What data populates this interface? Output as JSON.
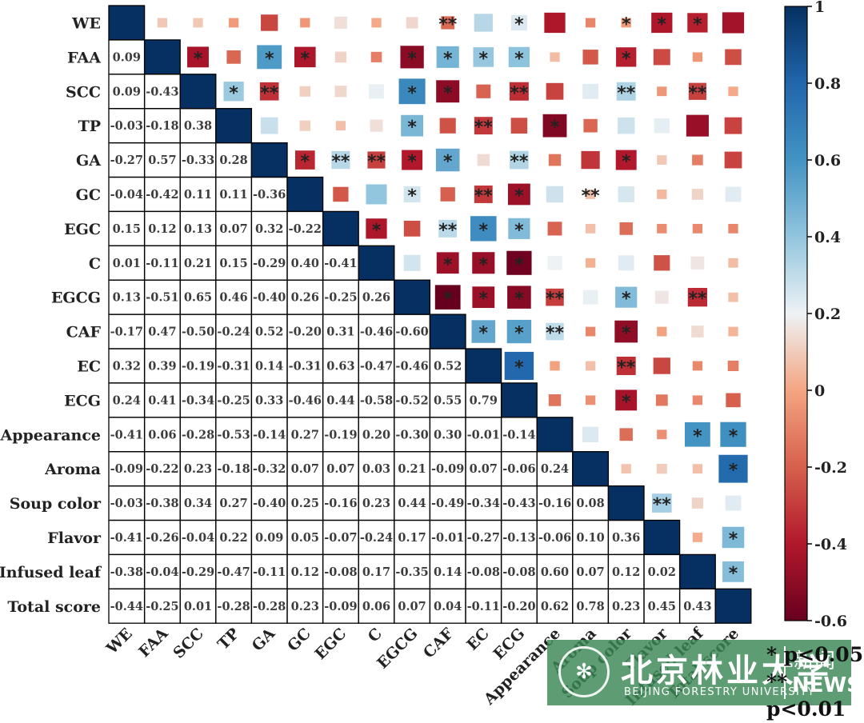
{
  "chart_data": {
    "type": "heatmap",
    "subtype": "correlation-matrix",
    "variables": [
      "WE",
      "FAA",
      "SCC",
      "TP",
      "GA",
      "GC",
      "EGC",
      "C",
      "EGCG",
      "CAF",
      "EC",
      "ECG",
      "Appearance",
      "Aroma",
      "Soup color",
      "Flavor",
      "Infused leaf",
      "Total score"
    ],
    "lower_triangle": [
      [],
      [
        0.09
      ],
      [
        0.09,
        -0.43
      ],
      [
        -0.03,
        -0.18,
        0.38
      ],
      [
        -0.27,
        0.57,
        -0.33,
        0.28
      ],
      [
        -0.04,
        -0.42,
        0.11,
        0.11,
        -0.36
      ],
      [
        0.15,
        0.12,
        0.13,
        0.07,
        0.32,
        -0.22
      ],
      [
        0.01,
        -0.11,
        0.21,
        0.15,
        -0.29,
        0.4,
        -0.41
      ],
      [
        0.13,
        -0.51,
        0.65,
        0.46,
        -0.4,
        0.26,
        -0.25,
        0.26
      ],
      [
        -0.17,
        0.47,
        -0.5,
        -0.24,
        0.52,
        -0.2,
        0.31,
        -0.46,
        -0.6
      ],
      [
        0.32,
        0.39,
        -0.19,
        -0.31,
        0.14,
        -0.31,
        0.63,
        -0.47,
        -0.46,
        0.52
      ],
      [
        0.24,
        0.41,
        -0.34,
        -0.25,
        0.33,
        -0.46,
        0.44,
        -0.58,
        -0.52,
        0.55,
        0.79
      ],
      [
        -0.41,
        0.06,
        -0.28,
        -0.53,
        -0.14,
        0.27,
        -0.19,
        0.2,
        -0.3,
        0.3,
        -0.01,
        -0.14
      ],
      [
        -0.09,
        -0.22,
        0.23,
        -0.18,
        -0.32,
        0.07,
        0.07,
        0.03,
        0.21,
        -0.09,
        0.07,
        -0.06,
        0.24
      ],
      [
        -0.03,
        -0.38,
        0.34,
        0.27,
        -0.4,
        0.25,
        -0.16,
        0.23,
        0.44,
        -0.49,
        -0.34,
        -0.43,
        -0.16,
        0.08
      ],
      [
        -0.41,
        -0.26,
        -0.04,
        0.22,
        0.09,
        0.05,
        -0.07,
        -0.24,
        0.17,
        -0.01,
        -0.27,
        -0.13,
        -0.06,
        0.1,
        0.36
      ],
      [
        -0.38,
        -0.04,
        -0.29,
        -0.47,
        -0.11,
        0.12,
        -0.08,
        0.17,
        -0.35,
        0.14,
        -0.08,
        -0.08,
        0.6,
        0.07,
        0.12,
        0.02
      ],
      [
        -0.44,
        -0.25,
        0.01,
        -0.28,
        -0.28,
        0.23,
        -0.09,
        0.06,
        0.07,
        0.04,
        -0.11,
        -0.2,
        0.62,
        0.78,
        0.23,
        0.45,
        0.43
      ]
    ],
    "significance_upper": [
      [
        "",
        "",
        "",
        "",
        "",
        "",
        "",
        "",
        "**",
        "",
        "*",
        "",
        "",
        "*",
        "*",
        "*"
      ],
      [
        "*",
        "",
        "*",
        "*",
        "",
        "",
        "*",
        "*",
        "*",
        "*",
        "",
        "",
        "*",
        "",
        "",
        ""
      ],
      [
        "*",
        "**",
        "",
        "",
        "",
        "*",
        "*",
        "",
        "**",
        "",
        "",
        "**",
        "",
        "**",
        ""
      ],
      [
        "",
        "",
        "",
        "",
        "*",
        "",
        "**",
        "",
        "*",
        "",
        "",
        "",
        "",
        ""
      ],
      [
        "*",
        "**",
        "**",
        "*",
        "*",
        "",
        "**",
        "",
        "",
        "*",
        "",
        "",
        ""
      ],
      [
        "",
        "",
        "*",
        "",
        "**",
        "*",
        "",
        "**",
        "",
        "",
        ""
      ],
      [
        "*",
        "",
        "**",
        "*",
        "*",
        "",
        "",
        "",
        "",
        "",
        ""
      ],
      [
        "",
        "*",
        "*",
        "*",
        "",
        "",
        "",
        "",
        "",
        ""
      ],
      [
        "*",
        "*",
        "*",
        "**",
        "",
        "*",
        "",
        "**",
        ""
      ],
      [
        "*",
        "*",
        "**",
        "",
        "*",
        "",
        "",
        ""
      ],
      [
        "*",
        "",
        "",
        "**",
        "",
        "",
        ""
      ],
      [
        "",
        "",
        "*",
        "",
        "",
        ""
      ],
      [
        "",
        "",
        "",
        "*",
        "*"
      ],
      [
        "",
        "",
        "",
        "*"
      ],
      [
        "**",
        "",
        ""
      ],
      [
        "",
        "*"
      ],
      [
        "*"
      ]
    ],
    "colorbar": {
      "min": -0.6,
      "max": 1,
      "ticks": [
        "1",
        "0.8",
        "0.6",
        "0.4",
        "0.2",
        "0",
        "-0.2",
        "-0.4",
        "-0.6"
      ]
    },
    "significance_legend": [
      "* p<0.05",
      "** p<0.01"
    ]
  },
  "watermark": {
    "logo_glyph": "✻",
    "name": "北京林业大学",
    "subtitle": "BEIJING FORESTRY UNIVERSITY",
    "news_cn": "新闻",
    "news_en": "NEWS"
  },
  "colors": {
    "strong_pos": "#053061",
    "mid_pos": "#4393c3",
    "weak": "#f7f7f7",
    "mid_neg": "#d6604d",
    "strong_neg": "#67001f",
    "grid": "#000000"
  }
}
